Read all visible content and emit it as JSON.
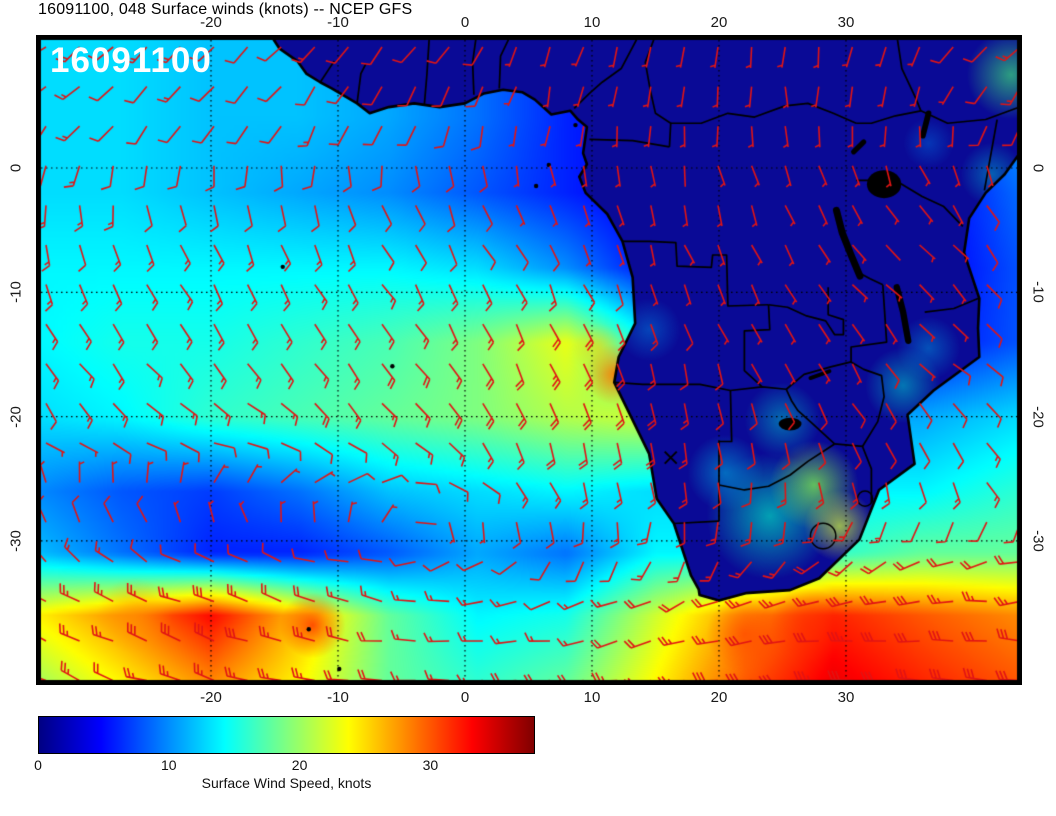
{
  "title": "16091100, 048 Surface winds (knots) -- NCEP GFS",
  "inset_label": "16091100",
  "axes": {
    "lon_tick_labels": [
      "-20",
      "-10",
      "0",
      "10",
      "20",
      "30"
    ],
    "lon_tick_values": [
      -20,
      -10,
      0,
      10,
      20,
      30
    ],
    "lat_tick_labels": [
      "0",
      "-10",
      "-20",
      "-30"
    ],
    "lat_tick_values": [
      0,
      -10,
      -20,
      -30
    ]
  },
  "colorbar": {
    "label": "Surface Wind Speed, knots",
    "tick_labels": [
      "0",
      "10",
      "20",
      "30"
    ],
    "tick_values": [
      0,
      10,
      20,
      30
    ],
    "min": 0,
    "max": 38,
    "stops": [
      {
        "p": 0,
        "c": "#000083"
      },
      {
        "p": 12.5,
        "c": "#0000ff"
      },
      {
        "p": 37.5,
        "c": "#00ffff"
      },
      {
        "p": 62.5,
        "c": "#ffff00"
      },
      {
        "p": 87.5,
        "c": "#ff0000"
      },
      {
        "p": 100,
        "c": "#800000"
      }
    ]
  },
  "chart_data": {
    "type": "heatmap",
    "quantity": "Surface wind speed, knots",
    "model": "NCEP GFS",
    "run": "16091100",
    "forecast_hour": "048",
    "overlay": "red wind barbs",
    "colormap": "jet",
    "lon_range": [
      -33.78,
      43.86
    ],
    "lat_range": [
      -41.59,
      10.7
    ],
    "lon_ticks": [
      -20,
      -10,
      0,
      10,
      20,
      30
    ],
    "lat_ticks": [
      0,
      -10,
      -20,
      -30
    ],
    "grid_lons": [
      -34,
      -27,
      -20,
      -13,
      -6,
      1,
      8,
      15,
      22,
      29,
      36,
      44
    ],
    "grid_lats": [
      11,
      4,
      -2,
      -8,
      -14,
      -20,
      -26,
      -31,
      -36,
      -41.5
    ],
    "speed_knots": [
      [
        13,
        13,
        12,
        12,
        11,
        9,
        6,
        5,
        4,
        4,
        7,
        15
      ],
      [
        13,
        13,
        12,
        12,
        11,
        9,
        6,
        4,
        4,
        4,
        5,
        11
      ],
      [
        13,
        13,
        12,
        11,
        10,
        8,
        6,
        4,
        4,
        4,
        4,
        9
      ],
      [
        14,
        14,
        14,
        14,
        14,
        13,
        10,
        5,
        4,
        4,
        4,
        8
      ],
      [
        14,
        15,
        15,
        16,
        17,
        19,
        23,
        14,
        5,
        5,
        5,
        8
      ],
      [
        13,
        14,
        16,
        17,
        18,
        19,
        21,
        22,
        9,
        11,
        11,
        13
      ],
      [
        10,
        8,
        7,
        9,
        12,
        13,
        14,
        13,
        13,
        14,
        14,
        16
      ],
      [
        12,
        9,
        6,
        6,
        8,
        11,
        9,
        14,
        14,
        16,
        18,
        18
      ],
      [
        24,
        28,
        33,
        26,
        18,
        14,
        15,
        22,
        28,
        32,
        30,
        28
      ],
      [
        20,
        24,
        28,
        24,
        18,
        16,
        18,
        24,
        30,
        34,
        32,
        30
      ]
    ],
    "wind_from_deg": [
      [
        235,
        230,
        228,
        225,
        220,
        210,
        200,
        190,
        185,
        190,
        210,
        225
      ],
      [
        225,
        222,
        218,
        212,
        205,
        195,
        190,
        180,
        175,
        175,
        185,
        205
      ],
      [
        185,
        180,
        172,
        166,
        160,
        158,
        160,
        168,
        160,
        150,
        140,
        150
      ],
      [
        162,
        157,
        152,
        150,
        150,
        150,
        155,
        160,
        150,
        140,
        132,
        140
      ],
      [
        150,
        146,
        142,
        140,
        144,
        150,
        156,
        162,
        155,
        146,
        136,
        128
      ],
      [
        142,
        132,
        126,
        130,
        140,
        150,
        162,
        172,
        162,
        152,
        142,
        122
      ],
      [
        345,
        352,
        10,
        30,
        70,
        120,
        160,
        176,
        180,
        170,
        160,
        150
      ],
      [
        320,
        312,
        302,
        292,
        280,
        235,
        200,
        192,
        202,
        222,
        242,
        252
      ],
      [
        300,
        296,
        290,
        285,
        278,
        270,
        260,
        252,
        256,
        262,
        266,
        270
      ],
      [
        296,
        290,
        286,
        280,
        276,
        270,
        266,
        262,
        266,
        270,
        276,
        280
      ]
    ]
  },
  "map": {
    "coastline": [
      [
        -15.3,
        10.7
      ],
      [
        -14.6,
        9.6
      ],
      [
        -13.2,
        8.6
      ],
      [
        -12.5,
        7.6
      ],
      [
        -11.4,
        6.9
      ],
      [
        -10.5,
        6.4
      ],
      [
        -8.5,
        5.2
      ],
      [
        -7.5,
        4.4
      ],
      [
        -6.0,
        4.9
      ],
      [
        -4.0,
        5.2
      ],
      [
        -2.0,
        4.9
      ],
      [
        0,
        5.2
      ],
      [
        1.5,
        6.0
      ],
      [
        3.0,
        6.3
      ],
      [
        4.5,
        6.1
      ],
      [
        5.5,
        5.5
      ],
      [
        6.8,
        4.3
      ],
      [
        8.3,
        4.6
      ],
      [
        8.9,
        3.9
      ],
      [
        9.6,
        3.3
      ],
      [
        9.3,
        1.2
      ],
      [
        9.6,
        0.3
      ],
      [
        9.0,
        -0.7
      ],
      [
        9.5,
        -2.0
      ],
      [
        11.2,
        -3.7
      ],
      [
        11.8,
        -4.8
      ],
      [
        12.4,
        -5.9
      ],
      [
        13.2,
        -8.8
      ],
      [
        13.4,
        -12.5
      ],
      [
        12.1,
        -15.2
      ],
      [
        11.75,
        -17.25
      ],
      [
        14.5,
        -23.0
      ],
      [
        15.1,
        -26.6
      ],
      [
        16.45,
        -28.6
      ],
      [
        17.8,
        -32.8
      ],
      [
        18.4,
        -33.9
      ],
      [
        18.47,
        -34.35
      ],
      [
        20.0,
        -34.8
      ],
      [
        22.1,
        -34.2
      ],
      [
        25.6,
        -33.96
      ],
      [
        27.9,
        -33.0
      ],
      [
        31.05,
        -29.9
      ],
      [
        32.6,
        -25.9
      ],
      [
        35.4,
        -23.8
      ],
      [
        34.85,
        -19.85
      ],
      [
        36.9,
        -17.9
      ],
      [
        40.5,
        -15.2
      ],
      [
        40.4,
        -12.9
      ],
      [
        40.5,
        -10.5
      ],
      [
        39.3,
        -6.8
      ],
      [
        39.7,
        -4.05
      ],
      [
        41.0,
        -2.0
      ],
      [
        42.5,
        -0.5
      ],
      [
        43.9,
        1.5
      ],
      [
        43.9,
        10.7
      ]
    ],
    "borders": [
      [
        [
          -11.4,
          6.9
        ],
        [
          -10.3,
          8.6
        ]
      ],
      [
        [
          -8.5,
          5.2
        ],
        [
          -8.2,
          7.6
        ],
        [
          -7.8,
          8.4
        ]
      ],
      [
        [
          -3.2,
          5.1
        ],
        [
          -3.0,
          7.5
        ],
        [
          -2.8,
          10.7
        ]
      ],
      [
        [
          0.7,
          5.9
        ],
        [
          0.6,
          8.5
        ],
        [
          0.9,
          10.7
        ]
      ],
      [
        [
          2.7,
          6.4
        ],
        [
          2.8,
          9.0
        ],
        [
          3.6,
          10.7
        ]
      ],
      [
        [
          8.6,
          4.8
        ],
        [
          9.8,
          6.0
        ],
        [
          10.8,
          6.9
        ],
        [
          12.3,
          8.0
        ],
        [
          13.7,
          10.7
        ]
      ],
      [
        [
          9.8,
          2.3
        ],
        [
          13.2,
          2.2
        ],
        [
          16.1,
          1.7
        ]
      ],
      [
        [
          16.1,
          1.7
        ],
        [
          16.2,
          3.6
        ],
        [
          15.0,
          4.4
        ],
        [
          14.6,
          6.2
        ],
        [
          14.2,
          8.5
        ],
        [
          15.0,
          10.7
        ]
      ],
      [
        [
          16.2,
          3.6
        ],
        [
          18.6,
          3.6
        ],
        [
          20.7,
          4.4
        ],
        [
          22.8,
          4.1
        ],
        [
          25.2,
          5.0
        ],
        [
          27.0,
          5.2
        ],
        [
          29.0,
          4.4
        ],
        [
          30.8,
          3.6
        ]
      ],
      [
        [
          30.8,
          3.6
        ],
        [
          32.0,
          3.6
        ],
        [
          33.9,
          4.2
        ],
        [
          35.9,
          4.6
        ],
        [
          38.0,
          3.6
        ],
        [
          41.0,
          3.9
        ],
        [
          43.9,
          5.0
        ]
      ],
      [
        [
          30.8,
          -1.0
        ],
        [
          33.9,
          -1.0
        ],
        [
          36.0,
          -2.3
        ],
        [
          37.7,
          -3.1
        ],
        [
          39.2,
          -4.7
        ]
      ],
      [
        [
          40.9,
          -1.8
        ],
        [
          41.9,
          3.9
        ]
      ],
      [
        [
          36.2,
          -11.6
        ],
        [
          38.5,
          -11.3
        ],
        [
          40.4,
          -10.5
        ]
      ],
      [
        [
          32.9,
          -9.4
        ],
        [
          31.9,
          -8.9
        ],
        [
          30.8,
          -8.3
        ]
      ],
      [
        [
          23.9,
          -11.0
        ],
        [
          25.4,
          -11.2
        ],
        [
          26.9,
          -11.9
        ],
        [
          28.4,
          -12.3
        ],
        [
          29.1,
          -13.4
        ],
        [
          29.8,
          -13.4
        ],
        [
          29.8,
          -12.2
        ],
        [
          28.6,
          -11.8
        ],
        [
          28.6,
          -9.6
        ]
      ],
      [
        [
          12.4,
          -5.9
        ],
        [
          14.5,
          -5.9
        ],
        [
          16.6,
          -6.0
        ],
        [
          16.7,
          -7.9
        ],
        [
          19.4,
          -8.0
        ],
        [
          19.5,
          -7.0
        ],
        [
          20.6,
          -7.0
        ],
        [
          20.7,
          -11.1
        ],
        [
          23.9,
          -11.0
        ]
      ],
      [
        [
          23.9,
          -11.0
        ],
        [
          24.0,
          -13.0
        ],
        [
          22.0,
          -13.1
        ],
        [
          22.0,
          -16.3
        ],
        [
          23.4,
          -17.6
        ]
      ],
      [
        [
          11.75,
          -17.25
        ],
        [
          14.0,
          -17.4
        ],
        [
          18.5,
          -17.4
        ],
        [
          20.9,
          -17.9
        ],
        [
          23.4,
          -17.6
        ],
        [
          25.3,
          -17.8
        ]
      ],
      [
        [
          20.9,
          -17.9
        ],
        [
          21.0,
          -22.0
        ],
        [
          20.0,
          -22.0
        ],
        [
          20.0,
          -28.4
        ]
      ],
      [
        [
          16.45,
          -28.6
        ],
        [
          20.0,
          -28.4
        ]
      ],
      [
        [
          20.0,
          -25.5
        ],
        [
          22.0,
          -25.9
        ],
        [
          23.9,
          -25.6
        ],
        [
          25.6,
          -24.7
        ],
        [
          27.0,
          -23.6
        ],
        [
          28.2,
          -22.8
        ],
        [
          29.1,
          -22.2
        ]
      ],
      [
        [
          29.1,
          -22.2
        ],
        [
          31.3,
          -22.4
        ],
        [
          32.0,
          -24.2
        ],
        [
          32.0,
          -26.9
        ]
      ],
      [
        [
          25.3,
          -17.8
        ],
        [
          25.7,
          -18.7
        ],
        [
          26.2,
          -19.5
        ],
        [
          27.3,
          -20.5
        ],
        [
          29.1,
          -22.2
        ]
      ],
      [
        [
          25.3,
          -17.8
        ],
        [
          26.7,
          -16.6
        ],
        [
          28.8,
          -16.0
        ],
        [
          30.4,
          -15.6
        ]
      ],
      [
        [
          30.4,
          -15.6
        ],
        [
          30.4,
          -14.4
        ],
        [
          33.2,
          -14.0
        ],
        [
          32.9,
          -9.4
        ]
      ],
      [
        [
          30.4,
          -15.6
        ],
        [
          31.4,
          -16.2
        ],
        [
          32.8,
          -16.7
        ],
        [
          33.0,
          -18.4
        ],
        [
          32.5,
          -20.4
        ],
        [
          31.3,
          -22.4
        ]
      ],
      [
        [
          34.0,
          10.7
        ],
        [
          34.4,
          8.0
        ],
        [
          35.5,
          5.6
        ],
        [
          35.9,
          4.6
        ]
      ]
    ],
    "enclaves": [
      {
        "c": [
          28.2,
          -29.6
        ],
        "r": 1.0
      },
      {
        "c": [
          31.5,
          -26.6
        ],
        "r": 0.6
      }
    ],
    "lakes_ellipse": [
      {
        "c": [
          33.0,
          -1.3
        ],
        "rx": 1.35,
        "ry": 1.1
      },
      {
        "c": [
          25.6,
          -20.6
        ],
        "rx": 0.9,
        "ry": 0.5
      }
    ],
    "lakes_line": [
      {
        "pts": [
          [
            29.25,
            -3.4
          ],
          [
            29.7,
            -5.2
          ],
          [
            30.4,
            -7.0
          ],
          [
            31.1,
            -8.7
          ]
        ],
        "w": 0.55
      },
      {
        "pts": [
          [
            34.0,
            -9.6
          ],
          [
            34.5,
            -11.6
          ],
          [
            34.9,
            -13.9
          ]
        ],
        "w": 0.5
      },
      {
        "pts": [
          [
            27.2,
            -16.9
          ],
          [
            28.7,
            -16.35
          ]
        ],
        "w": 0.3
      },
      {
        "pts": [
          [
            36.05,
            2.6
          ],
          [
            36.5,
            4.4
          ]
        ],
        "w": 0.45
      },
      {
        "pts": [
          [
            30.6,
            1.3
          ],
          [
            31.4,
            2.1
          ]
        ],
        "w": 0.4
      }
    ],
    "islands": [
      [
        -5.72,
        -15.95
      ],
      [
        -14.35,
        -7.95
      ],
      [
        6.6,
        0.25
      ],
      [
        8.7,
        3.45
      ],
      [
        5.6,
        -1.45
      ],
      [
        -12.3,
        -37.1
      ],
      [
        -9.9,
        -40.3
      ]
    ],
    "ocean_patches": [
      {
        "lon": 11.8,
        "lat": -16.6,
        "r": 2.4,
        "color": "rgba(255,120,0,0.90)"
      },
      {
        "lon": 10.5,
        "lat": -14.5,
        "r": 2.0,
        "color": "rgba(255,200,0,0.50)"
      },
      {
        "lon": -12.0,
        "lat": -36.8,
        "r": 2.6,
        "color": "rgba(255,30,0,0.75)"
      },
      {
        "lon": -26.0,
        "lat": -36.0,
        "r": 3.0,
        "color": "rgba(255,150,0,0.55)"
      },
      {
        "lon": 22.0,
        "lat": -37.5,
        "r": 3.0,
        "color": "rgba(255,60,0,0.60)"
      },
      {
        "lon": 27.0,
        "lat": -36.8,
        "r": 3.0,
        "color": "rgba(255,40,0,0.55)"
      }
    ],
    "land_patches": [
      {
        "lon": 24.0,
        "lat": -28.0,
        "r": 5.0,
        "color": "rgba(0,210,190,0.75)"
      },
      {
        "lon": 27.5,
        "lat": -25.5,
        "r": 3.5,
        "color": "rgba(120,230,80,0.80)"
      },
      {
        "lon": 29.5,
        "lat": -28.8,
        "r": 2.8,
        "color": "rgba(200,240,60,0.75)"
      },
      {
        "lon": 20.5,
        "lat": -24.5,
        "r": 3.0,
        "color": "rgba(0,170,220,0.60)"
      },
      {
        "lon": 25.0,
        "lat": -20.3,
        "r": 3.0,
        "color": "rgba(0,190,200,0.55)"
      },
      {
        "lon": 34.5,
        "lat": -17.5,
        "r": 3.0,
        "color": "rgba(0,190,200,0.60)"
      },
      {
        "lon": 36.5,
        "lat": -14.5,
        "r": 2.5,
        "color": "rgba(0,150,220,0.50)"
      },
      {
        "lon": 43.0,
        "lat": 7.5,
        "r": 3.5,
        "color": "rgba(60,220,120,0.70)"
      },
      {
        "lon": 41.5,
        "lat": -0.5,
        "r": 2.5,
        "color": "rgba(0,180,210,0.50)"
      },
      {
        "lon": 14.5,
        "lat": -13.0,
        "r": 2.5,
        "color": "rgba(0,140,230,0.45)"
      },
      {
        "lon": 36.5,
        "lat": 2.0,
        "r": 2.0,
        "color": "rgba(0,120,230,0.40)"
      }
    ],
    "marker": {
      "lon": 16.2,
      "lat": -23.3,
      "symbol": "x"
    }
  },
  "style": {
    "barb_color": "#e11414",
    "land_fill": "#0a0a96",
    "outline": "#000000",
    "frame_color": "#000000"
  }
}
